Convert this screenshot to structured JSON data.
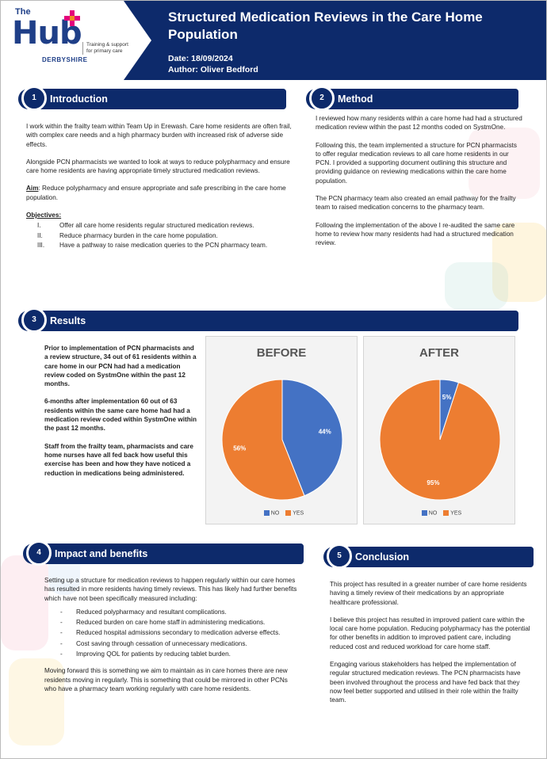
{
  "header": {
    "logo": {
      "the": "The",
      "hub": "Hub",
      "region": "DERBYSHIRE",
      "tagline": "Training & support for primary care"
    },
    "title": "Structured Medication Reviews in the Care Home Population",
    "date": "Date: 18/09/2024",
    "author": "Author: Oliver Bedford"
  },
  "colors": {
    "navy": "#0d2a6b",
    "no": "#4472c4",
    "yes": "#ed7d31"
  },
  "intro": {
    "num": "1",
    "heading": "Introduction",
    "p1": "I work within the frailty team within Team Up in Erewash. Care home residents are often frail, with complex care needs and a high pharmacy burden with increased risk of adverse side effects.",
    "p2": "Alongside PCN pharmacists we wanted to look at ways to reduce polypharmacy and ensure care home residents are having appropriate timely structured medication reviews.",
    "aim_label": "Aim",
    "aim_text": ": Reduce polypharmacy and ensure appropriate and safe prescribing in the care home population.",
    "objectives_label": "Objectives:",
    "objectives": [
      {
        "n": "I.",
        "text": "Offer all care home residents regular structured medication reviews."
      },
      {
        "n": "II.",
        "text": "Reduce pharmacy burden in the care home population."
      },
      {
        "n": "III.",
        "text": "Have a pathway to raise medication queries to the PCN pharmacy team."
      }
    ]
  },
  "method": {
    "num": "2",
    "heading": "Method",
    "paragraphs": [
      "I reviewed how many residents within a care home had had a structured medication review within the past 12 months coded on SystmOne.",
      "Following this, the team implemented a structure for PCN pharmacists to offer regular medication reviews to all care home residents in our PCN. I provided a supporting document outlining this structure and providing guidance on reviewing medications within the care home population.",
      "The PCN pharmacy team also created an email pathway for the frailty team to raised medication concerns to the pharmacy team.",
      "Following the implementation of the above I re-audited the same care home to review how many residents had had a structured medication review."
    ]
  },
  "results": {
    "num": "3",
    "heading": "Results",
    "paragraphs": [
      "Prior to implementation of PCN pharmacists and a review structure, 34 out of 61 residents within a care home in our PCN had had a medication review coded on SystmOne within the past 12 months.",
      "6-months after implementation 60 out of 63 residents within the same care home had had a medication review coded within SystmOne within the past 12 months.",
      "Staff from the frailty team, pharmacists and care home nurses have all fed back how useful this exercise has been and how they have noticed a reduction in medications being administered."
    ]
  },
  "chart_data": [
    {
      "type": "pie",
      "title": "BEFORE",
      "categories": [
        "NO",
        "YES"
      ],
      "values": [
        44,
        56
      ],
      "labels": [
        "44%",
        "56%"
      ],
      "colors": [
        "#4472c4",
        "#ed7d31"
      ],
      "legend": "bottom"
    },
    {
      "type": "pie",
      "title": "AFTER",
      "categories": [
        "NO",
        "YES"
      ],
      "values": [
        5,
        95
      ],
      "labels": [
        "5%",
        "95%"
      ],
      "colors": [
        "#4472c4",
        "#ed7d31"
      ],
      "legend": "bottom"
    }
  ],
  "impact": {
    "num": "4",
    "heading": "Impact and benefits",
    "p1": "Setting up a structure for medication reviews to happen regularly within our care homes has resulted in more residents having timely reviews. This has likely had further benefits which have not been specifically measured including:",
    "items": [
      "Reduced polypharmacy and resultant complications.",
      "Reduced burden on care home staff in administering medications.",
      "Reduced hospital admissions secondary to medication adverse effects.",
      "Cost saving through cessation of unnecessary medications.",
      "Improving QOL for patients by reducing tablet burden."
    ],
    "bullet": "-",
    "p2": "Moving forward this is something we aim to maintain as in care homes there are new residents moving in regularly. This is something that could be mirrored in other PCNs who have a pharmacy team working regularly with care home residents."
  },
  "conclusion": {
    "num": "5",
    "heading": "Conclusion",
    "paragraphs": [
      "This project has resulted in a greater number of care home residents having a timely review of their medications by an appropriate healthcare professional.",
      "I believe this project has resulted in improved patient care within the local care home population. Reducing polypharmacy has the potential for other benefits in addition to improved patient care, including reduced cost and reduced workload for care home staff.",
      "Engaging various stakeholders has helped the implementation of regular structured medication reviews. The PCN pharmacists have been involved throughout the process and have fed back that they now feel better supported and utilised in their role within the frailty team."
    ]
  }
}
